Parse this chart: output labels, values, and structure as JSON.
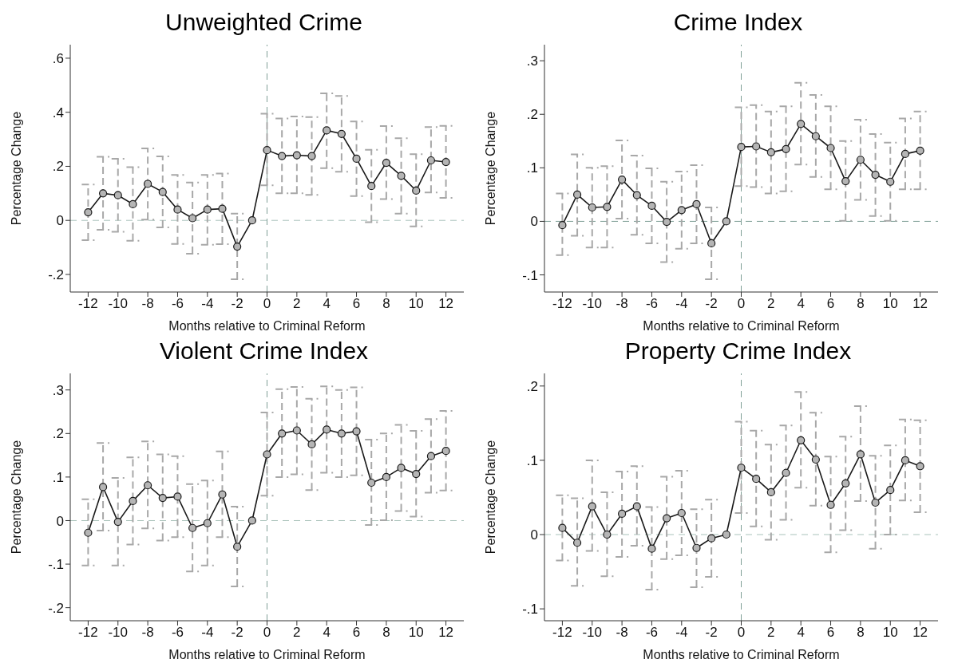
{
  "chart_data": [
    {
      "type": "line",
      "title": "Unweighted Crime",
      "xlabel": "Months relative to Criminal Reform",
      "ylabel": "Percentage Change",
      "x": [
        -12,
        -11,
        -10,
        -9,
        -8,
        -7,
        -6,
        -5,
        -4,
        -3,
        -2,
        -1,
        0,
        1,
        2,
        3,
        4,
        5,
        6,
        7,
        8,
        9,
        10,
        11,
        12
      ],
      "xlim": [
        -13.2,
        13.2
      ],
      "xticks": [
        -12,
        -10,
        -8,
        -6,
        -4,
        -2,
        0,
        2,
        4,
        6,
        8,
        10,
        12
      ],
      "ylim": [
        -0.265,
        0.65
      ],
      "yticks": [
        {
          "value": -0.2,
          "label": "-.2"
        },
        {
          "value": 0,
          "label": "0"
        },
        {
          "value": 0.2,
          "label": ".2"
        },
        {
          "value": 0.4,
          "label": ".4"
        },
        {
          "value": 0.6,
          "label": ".6"
        }
      ],
      "marker": "circle",
      "ref_lines": [
        {
          "axis": "x",
          "value": 0,
          "color": "#7f9f97",
          "line_style": "dashed"
        },
        {
          "axis": "y",
          "value": 0,
          "color": "#a9c2bb",
          "line_style": "dashed"
        }
      ],
      "series": [
        {
          "color": "#1a1a1a",
          "values": [
            0.03,
            0.1,
            0.093,
            0.06,
            0.135,
            0.105,
            0.04,
            0.008,
            0.04,
            0.043,
            -0.097,
            0,
            0.26,
            0.238,
            0.241,
            0.238,
            0.333,
            0.32,
            0.228,
            0.127,
            0.213,
            0.165,
            0.11,
            0.222,
            0.216
          ],
          "errors": [
            [
              -0.073,
              0.133
            ],
            [
              -0.035,
              0.235
            ],
            [
              -0.042,
              0.228
            ],
            [
              -0.075,
              0.197
            ],
            [
              0.003,
              0.266
            ],
            [
              -0.026,
              0.237
            ],
            [
              -0.087,
              0.168
            ],
            [
              -0.123,
              0.14
            ],
            [
              -0.09,
              0.168
            ],
            [
              -0.088,
              0.173
            ],
            [
              -0.218,
              0.025
            ],
            null,
            [
              0.13,
              0.395
            ],
            [
              0.1,
              0.377
            ],
            [
              0.1,
              0.384
            ],
            [
              0.094,
              0.382
            ],
            [
              0.193,
              0.47
            ],
            [
              0.18,
              0.46
            ],
            [
              0.09,
              0.366
            ],
            [
              -0.007,
              0.261
            ],
            [
              0.079,
              0.349
            ],
            [
              0.025,
              0.304
            ],
            [
              -0.022,
              0.245
            ],
            [
              0.103,
              0.345
            ],
            [
              0.083,
              0.35
            ]
          ]
        }
      ]
    },
    {
      "type": "line",
      "title": "Crime Index",
      "xlabel": "Months relative to Criminal Reform",
      "ylabel": "Percentage Change",
      "x": [
        -12,
        -11,
        -10,
        -9,
        -8,
        -7,
        -6,
        -5,
        -4,
        -3,
        -2,
        -1,
        0,
        1,
        2,
        3,
        4,
        5,
        6,
        7,
        8,
        9,
        10,
        11,
        12
      ],
      "xlim": [
        -13.2,
        13.2
      ],
      "xticks": [
        -12,
        -10,
        -8,
        -6,
        -4,
        -2,
        0,
        2,
        4,
        6,
        8,
        10,
        12
      ],
      "ylim": [
        -0.132,
        0.33
      ],
      "yticks": [
        {
          "value": -0.1,
          "label": "-.1"
        },
        {
          "value": 0,
          "label": "0"
        },
        {
          "value": 0.1,
          "label": ".1"
        },
        {
          "value": 0.2,
          "label": ".2"
        },
        {
          "value": 0.3,
          "label": ".3"
        }
      ],
      "marker": "circle",
      "ref_lines": [
        {
          "axis": "x",
          "value": 0,
          "color": "#7f9f97",
          "line_style": "dashed"
        },
        {
          "axis": "y",
          "value": 0,
          "color": "#7f9f97",
          "line_style": "dashed"
        }
      ],
      "series": [
        {
          "color": "#1a1a1a",
          "values": [
            -0.007,
            0.05,
            0.026,
            0.027,
            0.078,
            0.049,
            0.029,
            -0.001,
            0.021,
            0.032,
            -0.041,
            0,
            0.139,
            0.14,
            0.129,
            0.135,
            0.182,
            0.159,
            0.137,
            0.075,
            0.115,
            0.087,
            0.074,
            0.126,
            0.132
          ],
          "errors": [
            [
              -0.063,
              0.052
            ],
            [
              -0.027,
              0.125
            ],
            [
              -0.049,
              0.1
            ],
            [
              -0.049,
              0.103
            ],
            [
              0.005,
              0.151
            ],
            [
              -0.025,
              0.123
            ],
            [
              -0.041,
              0.099
            ],
            [
              -0.076,
              0.074
            ],
            [
              -0.051,
              0.093
            ],
            [
              -0.041,
              0.105
            ],
            [
              -0.108,
              0.026
            ],
            null,
            [
              0.066,
              0.213
            ],
            [
              0.064,
              0.217
            ],
            [
              0.052,
              0.205
            ],
            [
              0.056,
              0.215
            ],
            [
              0.106,
              0.259
            ],
            [
              0.083,
              0.236
            ],
            [
              0.06,
              0.215
            ],
            [
              0.001,
              0.15
            ],
            [
              0.04,
              0.19
            ],
            [
              0.01,
              0.163
            ],
            [
              0.001,
              0.147
            ],
            [
              0.06,
              0.192
            ],
            [
              0.06,
              0.205
            ]
          ]
        }
      ]
    },
    {
      "type": "line",
      "title": "Violent Crime Index",
      "xlabel": "Months relative to Criminal Reform",
      "ylabel": "Percentage Change",
      "x": [
        -12,
        -11,
        -10,
        -9,
        -8,
        -7,
        -6,
        -5,
        -4,
        -3,
        -2,
        -1,
        0,
        1,
        2,
        3,
        4,
        5,
        6,
        7,
        8,
        9,
        10,
        11,
        12
      ],
      "xlim": [
        -13.2,
        13.2
      ],
      "xticks": [
        -12,
        -10,
        -8,
        -6,
        -4,
        -2,
        0,
        2,
        4,
        6,
        8,
        10,
        12
      ],
      "ylim": [
        -0.23,
        0.338
      ],
      "yticks": [
        {
          "value": -0.2,
          "label": "-.2"
        },
        {
          "value": -0.1,
          "label": "-.1"
        },
        {
          "value": 0,
          "label": "0"
        },
        {
          "value": 0.1,
          "label": ".1"
        },
        {
          "value": 0.2,
          "label": ".2"
        },
        {
          "value": 0.3,
          "label": ".3"
        }
      ],
      "marker": "circle",
      "ref_lines": [
        {
          "axis": "x",
          "value": 0,
          "color": "#7f9f97",
          "line_style": "dashed"
        },
        {
          "axis": "y",
          "value": 0,
          "color": "#a9c2bb",
          "line_style": "dashed"
        }
      ],
      "series": [
        {
          "color": "#1a1a1a",
          "values": [
            -0.028,
            0.077,
            -0.003,
            0.045,
            0.081,
            0.052,
            0.055,
            -0.017,
            -0.006,
            0.06,
            -0.06,
            0,
            0.152,
            0.2,
            0.207,
            0.175,
            0.209,
            0.2,
            0.205,
            0.087,
            0.1,
            0.121,
            0.107,
            0.148,
            0.16
          ],
          "errors": [
            [
              -0.103,
              0.049
            ],
            [
              -0.023,
              0.178
            ],
            [
              -0.103,
              0.098
            ],
            [
              -0.055,
              0.145
            ],
            [
              -0.018,
              0.182
            ],
            [
              -0.046,
              0.152
            ],
            [
              -0.038,
              0.148
            ],
            [
              -0.117,
              0.084
            ],
            [
              -0.103,
              0.092
            ],
            [
              -0.038,
              0.159
            ],
            [
              -0.151,
              0.032
            ],
            null,
            [
              0.057,
              0.248
            ],
            [
              0.1,
              0.302
            ],
            [
              0.106,
              0.307
            ],
            [
              0.07,
              0.28
            ],
            [
              0.11,
              0.308
            ],
            [
              0.1,
              0.3
            ],
            [
              0.104,
              0.306
            ],
            [
              -0.01,
              0.186
            ],
            [
              0.001,
              0.2
            ],
            [
              0.022,
              0.22
            ],
            [
              0.009,
              0.206
            ],
            [
              0.064,
              0.233
            ],
            [
              0.069,
              0.252
            ]
          ]
        }
      ]
    },
    {
      "type": "line",
      "title": "Property Crime Index",
      "xlabel": "Months relative to Criminal Reform",
      "ylabel": "Percentage Change",
      "x": [
        -12,
        -11,
        -10,
        -9,
        -8,
        -7,
        -6,
        -5,
        -4,
        -3,
        -2,
        -1,
        0,
        1,
        2,
        3,
        4,
        5,
        6,
        7,
        8,
        9,
        10,
        11,
        12
      ],
      "xlim": [
        -13.2,
        13.2
      ],
      "xticks": [
        -12,
        -10,
        -8,
        -6,
        -4,
        -2,
        0,
        2,
        4,
        6,
        8,
        10,
        12
      ],
      "ylim": [
        -0.116,
        0.217
      ],
      "yticks": [
        {
          "value": -0.1,
          "label": "-.1"
        },
        {
          "value": 0,
          "label": "0"
        },
        {
          "value": 0.1,
          "label": ".1"
        },
        {
          "value": 0.2,
          "label": ".2"
        }
      ],
      "marker": "circle",
      "ref_lines": [
        {
          "axis": "x",
          "value": 0,
          "color": "#7f9f97",
          "line_style": "dashed"
        },
        {
          "axis": "y",
          "value": 0,
          "color": "#a9c2bb",
          "line_style": "dashed"
        }
      ],
      "series": [
        {
          "color": "#1a1a1a",
          "values": [
            0.009,
            -0.011,
            0.038,
            0,
            0.028,
            0.038,
            -0.019,
            0.022,
            0.029,
            -0.018,
            -0.005,
            0,
            0.09,
            0.075,
            0.057,
            0.083,
            0.127,
            0.101,
            0.04,
            0.069,
            0.108,
            0.043,
            0.06,
            0.1,
            0.092
          ],
          "errors": [
            [
              -0.035,
              0.053
            ],
            [
              -0.069,
              0.049
            ],
            [
              -0.022,
              0.1
            ],
            [
              -0.056,
              0.057
            ],
            [
              -0.03,
              0.085
            ],
            [
              -0.015,
              0.092
            ],
            [
              -0.074,
              0.037
            ],
            [
              -0.033,
              0.078
            ],
            [
              -0.028,
              0.086
            ],
            [
              -0.071,
              0.034
            ],
            [
              -0.057,
              0.047
            ],
            null,
            [
              0.029,
              0.152
            ],
            [
              0.011,
              0.14
            ],
            [
              -0.007,
              0.121
            ],
            [
              0.02,
              0.147
            ],
            [
              0.063,
              0.192
            ],
            [
              0.039,
              0.164
            ],
            [
              -0.024,
              0.105
            ],
            [
              0.006,
              0.132
            ],
            [
              0.045,
              0.173
            ],
            [
              -0.019,
              0.106
            ],
            [
              0,
              0.12
            ],
            [
              0.046,
              0.155
            ],
            [
              0.03,
              0.154
            ]
          ]
        }
      ]
    }
  ]
}
